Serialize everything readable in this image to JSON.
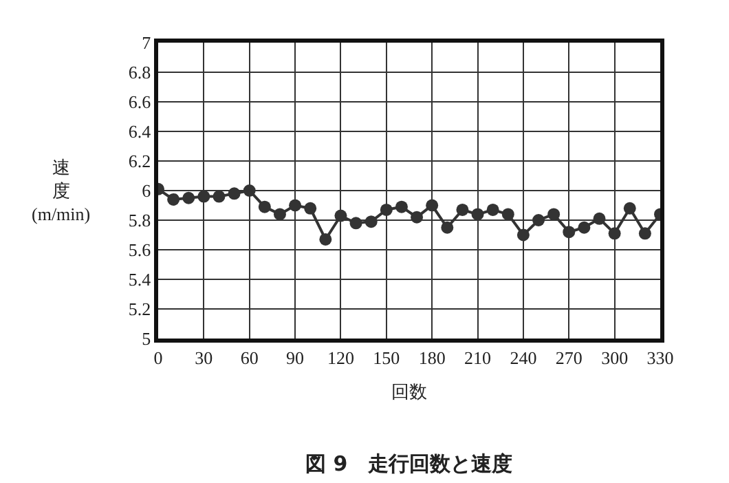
{
  "chart_data": {
    "type": "line",
    "title": "図 9　走行回数と速度",
    "xlabel": "回数",
    "ylabel": "速度(m/min)",
    "x": [
      0,
      10,
      20,
      30,
      40,
      50,
      60,
      70,
      80,
      90,
      100,
      110,
      120,
      130,
      140,
      150,
      160,
      170,
      180,
      190,
      200,
      210,
      220,
      230,
      240,
      250,
      260,
      270,
      280,
      290,
      300,
      310,
      320,
      330
    ],
    "series": [
      {
        "color": "#333333",
        "values": [
          6.01,
          5.94,
          5.95,
          5.96,
          5.96,
          5.98,
          6.0,
          5.89,
          5.84,
          5.9,
          5.88,
          5.67,
          5.83,
          5.78,
          5.79,
          5.87,
          5.89,
          5.82,
          5.9,
          5.75,
          5.87,
          5.84,
          5.87,
          5.84,
          5.7,
          5.8,
          5.84,
          5.72,
          5.75,
          5.81,
          5.71,
          5.88,
          5.71,
          5.84
        ]
      }
    ],
    "xlim": [
      0,
      330
    ],
    "xticks": [
      0,
      30,
      60,
      90,
      120,
      150,
      180,
      210,
      240,
      270,
      300,
      330
    ],
    "ylim": [
      5,
      7
    ],
    "yticks": [
      5,
      5.2,
      5.4,
      5.6,
      5.8,
      6,
      6.2,
      6.4,
      6.6,
      6.8,
      7
    ],
    "grid": true,
    "marker": "circle",
    "line_style": "solid"
  }
}
